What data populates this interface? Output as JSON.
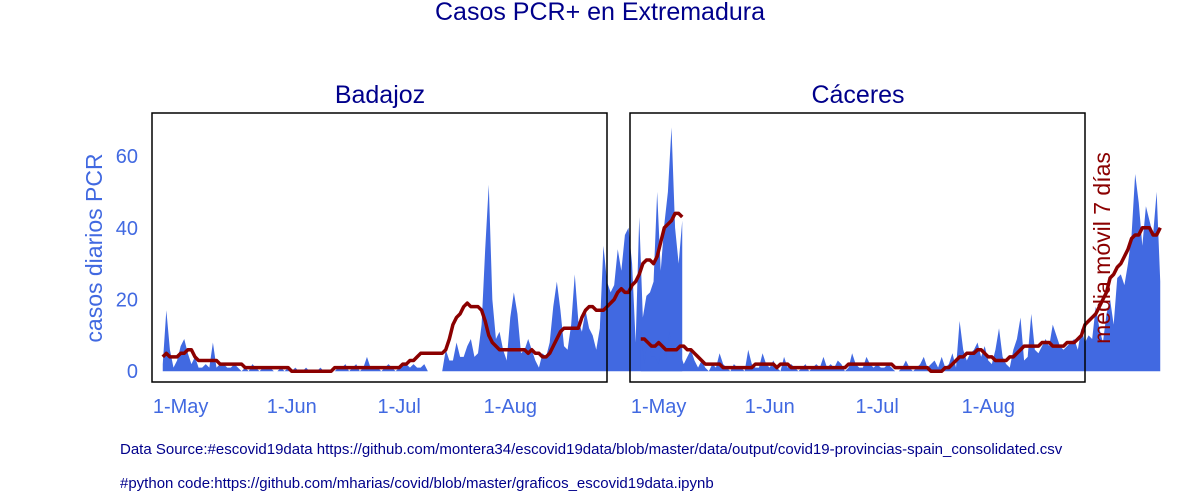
{
  "title": "Casos PCR+ en Extremadura",
  "footnotes": {
    "source": "Data Source:#escovid19data https://github.com/montera34/escovid19data/blob/master/data/output/covid19-provincias-spain_consolidated.csv",
    "code": "#python code:https://github.com/mharias/covid/blob/master/graficos_escovid19data.ipynb"
  },
  "colors": {
    "area": "#4169e1",
    "line": "#8b0000",
    "title": "#00008b",
    "left_axis": "#4169e1",
    "right_axis": "#8b0000"
  },
  "chart_data": [
    {
      "type": "area",
      "title": "Badajoz",
      "ylabel": "casos diarios PCR",
      "y2label": "",
      "x_start": "2020-04-26",
      "x_end": "2020-08-24",
      "xlim": [
        "2020-04-23",
        "2020-08-28"
      ],
      "ylim": [
        -3,
        72
      ],
      "yticks": [
        0,
        20,
        40,
        60
      ],
      "xticks": [
        "1-May",
        "1-Jun",
        "1-Jul",
        "1-Aug"
      ],
      "grid": false,
      "series": [
        {
          "kind": "area",
          "values": [
            2,
            17,
            6,
            1,
            3,
            7,
            9,
            5,
            2,
            4,
            1,
            1,
            2,
            1,
            8,
            1,
            2,
            2,
            1,
            1,
            2,
            1,
            0,
            1,
            0,
            2,
            1,
            0,
            1,
            1,
            1,
            0,
            0,
            1,
            0,
            1,
            0,
            1,
            0,
            0,
            1,
            0,
            0,
            0,
            1,
            0,
            0,
            0,
            0,
            1,
            1,
            2,
            0,
            1,
            2,
            0,
            1,
            4,
            1,
            1,
            1,
            0,
            1,
            2,
            1,
            0,
            1,
            2,
            2,
            1,
            2,
            1,
            1,
            2,
            0,
            0,
            0,
            0,
            0,
            6,
            3,
            3,
            8,
            4,
            4,
            7,
            9,
            4,
            5,
            13,
            34,
            52,
            20,
            9,
            11,
            6,
            3,
            15,
            22,
            16,
            5,
            6,
            9,
            6,
            3,
            1,
            5,
            4,
            8,
            18,
            25,
            17,
            7,
            6,
            13,
            27,
            14,
            11,
            17,
            12,
            10,
            6,
            12,
            35,
            25,
            22,
            24,
            34,
            28,
            38,
            40,
            30,
            8,
            43,
            15,
            21,
            22,
            25,
            50,
            28,
            41,
            50,
            68,
            40,
            30,
            42
          ]
        },
        {
          "kind": "line",
          "values": [
            4,
            5,
            4,
            4,
            4,
            5,
            5,
            6,
            6,
            4,
            3,
            3,
            3,
            3,
            3,
            3,
            2,
            2,
            2,
            2,
            2,
            2,
            2,
            1,
            1,
            1,
            1,
            1,
            1,
            1,
            1,
            1,
            1,
            1,
            1,
            1,
            0,
            0,
            0,
            0,
            0,
            0,
            0,
            0,
            0,
            0,
            0,
            0,
            1,
            1,
            1,
            1,
            1,
            1,
            1,
            1,
            1,
            1,
            1,
            1,
            1,
            1,
            1,
            1,
            1,
            1,
            1,
            2,
            2,
            3,
            3,
            4,
            5,
            5,
            5,
            5,
            5,
            5,
            5,
            6,
            9,
            13,
            15,
            16,
            18,
            19,
            18,
            18,
            18,
            17,
            14,
            10,
            8,
            7,
            6,
            6,
            6,
            6,
            6,
            6,
            6,
            6,
            5,
            6,
            5,
            5,
            4,
            4,
            5,
            7,
            9,
            11,
            12,
            12,
            12,
            12,
            12,
            15,
            17,
            18,
            18,
            17,
            17,
            17,
            18,
            19,
            20,
            22,
            23,
            22,
            22,
            24,
            25,
            27,
            30,
            31,
            31,
            30,
            32,
            36,
            40,
            41,
            42,
            44,
            44,
            43
          ]
        }
      ]
    },
    {
      "type": "area",
      "title": "Cáceres",
      "ylabel": "",
      "y2label": "media móvil 7 días",
      "x_start": "2020-04-26",
      "x_end": "2020-08-24",
      "xlim": [
        "2020-04-23",
        "2020-08-28"
      ],
      "ylim": [
        -3,
        72
      ],
      "yticks": [
        0,
        20,
        40,
        60
      ],
      "xticks": [
        "1-May",
        "1-Jun",
        "1-Jul",
        "1-Aug"
      ],
      "grid": false,
      "series": [
        {
          "kind": "area",
          "values": [
            12,
            2,
            10,
            4,
            4,
            2,
            8,
            3,
            11,
            4,
            7,
            5,
            2,
            4,
            6,
            3,
            1,
            3,
            1,
            0,
            2,
            1,
            5,
            2,
            1,
            0,
            2,
            1,
            1,
            0,
            6,
            2,
            1,
            1,
            5,
            2,
            1,
            3,
            1,
            0,
            4,
            1,
            2,
            1,
            0,
            1,
            2,
            0,
            1,
            2,
            1,
            4,
            1,
            2,
            1,
            3,
            2,
            0,
            1,
            5,
            2,
            1,
            1,
            4,
            2,
            1,
            2,
            1,
            1,
            2,
            1,
            0,
            0,
            1,
            3,
            1,
            0,
            1,
            2,
            4,
            1,
            2,
            3,
            1,
            4,
            1,
            2,
            5,
            1,
            14,
            6,
            3,
            5,
            6,
            8,
            4,
            7,
            3,
            2,
            6,
            12,
            4,
            2,
            1,
            6,
            9,
            15,
            3,
            4,
            16,
            6,
            5,
            7,
            9,
            7,
            13,
            10,
            7,
            6,
            7,
            8,
            9,
            6,
            12,
            8,
            10,
            9,
            18,
            12,
            8,
            16,
            20,
            13,
            26,
            27,
            24,
            30,
            38,
            55,
            47,
            35,
            46,
            42,
            38,
            50,
            25
          ]
        },
        {
          "kind": "line",
          "values": [
            9,
            9,
            8,
            7,
            7,
            8,
            7,
            6,
            6,
            6,
            6,
            7,
            7,
            6,
            6,
            5,
            4,
            3,
            2,
            2,
            2,
            2,
            2,
            1,
            1,
            1,
            1,
            1,
            1,
            1,
            1,
            1,
            2,
            2,
            2,
            2,
            2,
            2,
            1,
            2,
            2,
            2,
            1,
            1,
            1,
            1,
            1,
            1,
            1,
            1,
            1,
            1,
            1,
            1,
            1,
            1,
            1,
            1,
            2,
            2,
            2,
            2,
            2,
            2,
            2,
            2,
            2,
            2,
            2,
            2,
            2,
            1,
            1,
            1,
            1,
            1,
            1,
            1,
            1,
            1,
            1,
            0,
            0,
            0,
            0,
            1,
            1,
            2,
            3,
            4,
            4,
            5,
            5,
            5,
            6,
            6,
            5,
            4,
            4,
            3,
            3,
            3,
            3,
            4,
            4,
            5,
            6,
            7,
            7,
            7,
            7,
            7,
            8,
            8,
            8,
            7,
            7,
            7,
            7,
            8,
            8,
            8,
            9,
            10,
            13,
            14,
            15,
            16,
            18,
            20,
            22,
            26,
            27,
            29,
            30,
            32,
            34,
            37,
            38,
            38,
            40,
            40,
            40,
            38,
            38,
            40
          ]
        }
      ]
    }
  ]
}
